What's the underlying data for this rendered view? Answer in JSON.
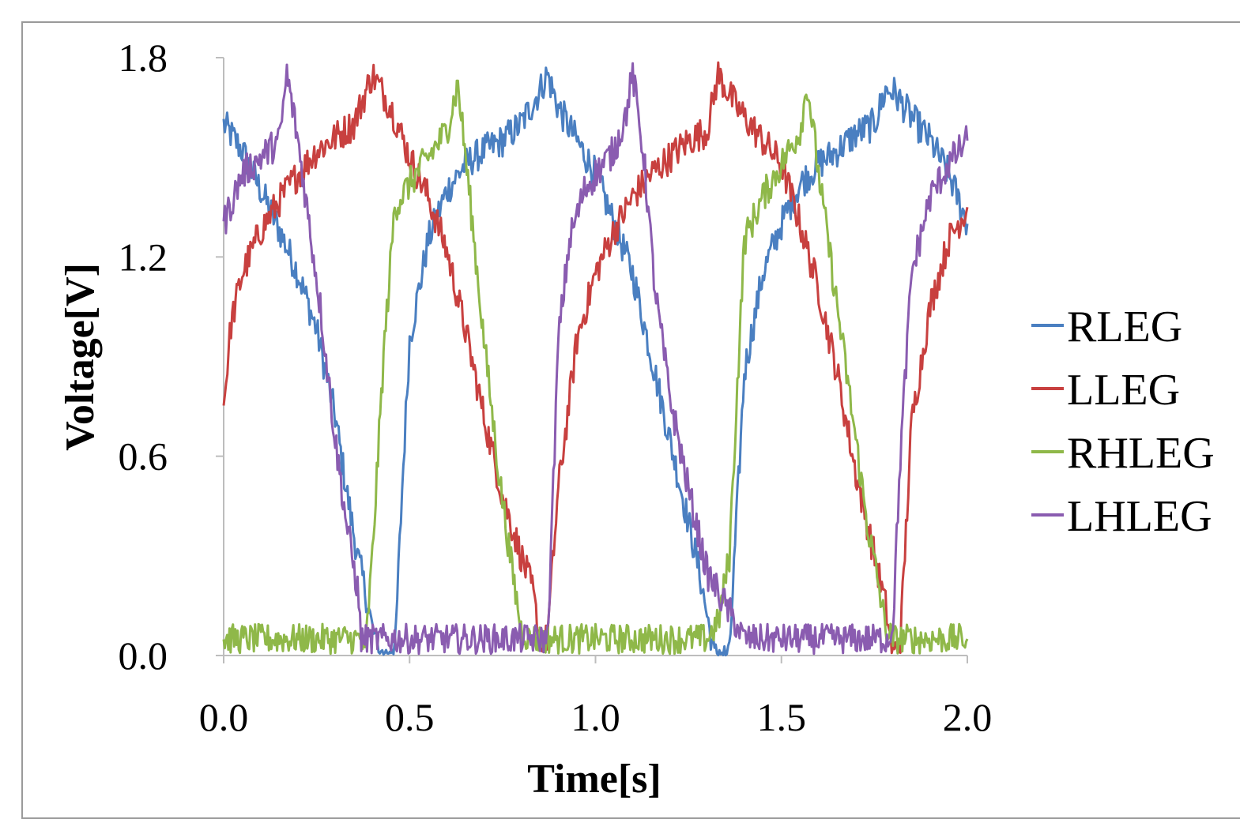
{
  "chart_data": {
    "type": "line",
    "title": "",
    "xlabel": "Time[s]",
    "ylabel": "Voltage[V]",
    "xlim": [
      0.0,
      2.0
    ],
    "ylim": [
      0.0,
      1.8
    ],
    "x_ticks": [
      "0.0",
      "0.5",
      "1.0",
      "1.5",
      "2.0"
    ],
    "y_ticks": [
      "0.0",
      "0.6",
      "1.2",
      "1.8"
    ],
    "grid": false,
    "legend_position": "right",
    "series": [
      {
        "name": "RLEG",
        "color": "#4a7fc1",
        "x": [
          0.0,
          0.05,
          0.1,
          0.15,
          0.2,
          0.25,
          0.3,
          0.33,
          0.36,
          0.38,
          0.4,
          0.42,
          0.44,
          0.46,
          0.48,
          0.5,
          0.55,
          0.6,
          0.65,
          0.7,
          0.75,
          0.8,
          0.85,
          0.87,
          0.9,
          0.95,
          1.0,
          1.05,
          1.1,
          1.15,
          1.2,
          1.25,
          1.28,
          1.3,
          1.32,
          1.34,
          1.36,
          1.4,
          1.45,
          1.5,
          1.55,
          1.6,
          1.65,
          1.7,
          1.75,
          1.78,
          1.8,
          1.85,
          1.9,
          1.95,
          2.0
        ],
        "y": [
          1.6,
          1.52,
          1.4,
          1.28,
          1.15,
          0.98,
          0.72,
          0.5,
          0.3,
          0.2,
          0.08,
          0.0,
          0.0,
          0.0,
          0.5,
          0.95,
          1.25,
          1.4,
          1.48,
          1.52,
          1.55,
          1.6,
          1.7,
          1.75,
          1.65,
          1.55,
          1.45,
          1.3,
          1.15,
          0.9,
          0.65,
          0.4,
          0.25,
          0.12,
          0.0,
          0.0,
          0.0,
          0.85,
          1.15,
          1.3,
          1.42,
          1.48,
          1.52,
          1.57,
          1.6,
          1.7,
          1.7,
          1.62,
          1.55,
          1.45,
          1.3
        ]
      },
      {
        "name": "LLEG",
        "color": "#c8403f",
        "x": [
          0.0,
          0.02,
          0.05,
          0.1,
          0.15,
          0.2,
          0.25,
          0.3,
          0.35,
          0.4,
          0.45,
          0.5,
          0.55,
          0.6,
          0.65,
          0.7,
          0.75,
          0.8,
          0.83,
          0.85,
          0.87,
          0.9,
          0.95,
          1.0,
          1.05,
          1.1,
          1.15,
          1.2,
          1.25,
          1.3,
          1.33,
          1.38,
          1.45,
          1.5,
          1.55,
          1.6,
          1.65,
          1.7,
          1.73,
          1.76,
          1.78,
          1.8,
          1.82,
          1.85,
          1.9,
          1.95,
          2.0
        ],
        "y": [
          0.75,
          1.0,
          1.15,
          1.28,
          1.37,
          1.45,
          1.52,
          1.56,
          1.6,
          1.75,
          1.65,
          1.5,
          1.38,
          1.22,
          0.98,
          0.72,
          0.48,
          0.3,
          0.2,
          0.05,
          0.05,
          0.5,
          0.95,
          1.15,
          1.28,
          1.38,
          1.45,
          1.5,
          1.55,
          1.58,
          1.75,
          1.65,
          1.55,
          1.48,
          1.3,
          1.1,
          0.85,
          0.55,
          0.4,
          0.25,
          0.15,
          0.0,
          0.05,
          0.7,
          1.05,
          1.25,
          1.35
        ]
      },
      {
        "name": "RHLEG",
        "color": "#8fb849",
        "x": [
          0.0,
          0.1,
          0.2,
          0.3,
          0.37,
          0.38,
          0.4,
          0.43,
          0.46,
          0.5,
          0.55,
          0.6,
          0.63,
          0.66,
          0.7,
          0.74,
          0.77,
          0.8,
          0.82,
          0.85,
          0.9,
          1.0,
          1.1,
          1.2,
          1.3,
          1.33,
          1.36,
          1.4,
          1.45,
          1.5,
          1.55,
          1.57,
          1.6,
          1.65,
          1.7,
          1.73,
          1.76,
          1.78,
          1.8,
          1.9,
          2.0
        ],
        "y": [
          0.05,
          0.05,
          0.05,
          0.05,
          0.05,
          0.0,
          0.3,
          0.9,
          1.35,
          1.42,
          1.5,
          1.58,
          1.72,
          1.4,
          0.95,
          0.55,
          0.3,
          0.08,
          0.05,
          0.05,
          0.05,
          0.05,
          0.05,
          0.05,
          0.05,
          0.1,
          0.3,
          1.25,
          1.38,
          1.48,
          1.58,
          1.72,
          1.45,
          1.05,
          0.65,
          0.4,
          0.22,
          0.08,
          0.05,
          0.05,
          0.05
        ]
      },
      {
        "name": "LHLEG",
        "color": "#8a5cb0",
        "x": [
          0.0,
          0.05,
          0.1,
          0.15,
          0.17,
          0.2,
          0.23,
          0.26,
          0.3,
          0.33,
          0.36,
          0.37,
          0.5,
          0.6,
          0.7,
          0.8,
          0.87,
          0.88,
          0.9,
          0.93,
          0.97,
          1.0,
          1.05,
          1.08,
          1.1,
          1.13,
          1.16,
          1.2,
          1.25,
          1.3,
          1.4,
          1.5,
          1.6,
          1.7,
          1.79,
          1.8,
          1.82,
          1.85,
          1.9,
          1.95,
          2.0
        ],
        "y": [
          1.3,
          1.45,
          1.5,
          1.55,
          1.75,
          1.55,
          1.3,
          1.05,
          0.65,
          0.4,
          0.2,
          0.05,
          0.05,
          0.05,
          0.05,
          0.05,
          0.05,
          0.3,
          0.95,
          1.25,
          1.4,
          1.45,
          1.52,
          1.62,
          1.75,
          1.5,
          1.1,
          0.78,
          0.5,
          0.25,
          0.05,
          0.05,
          0.05,
          0.05,
          0.05,
          0.1,
          0.6,
          1.15,
          1.38,
          1.48,
          1.55
        ]
      }
    ]
  }
}
